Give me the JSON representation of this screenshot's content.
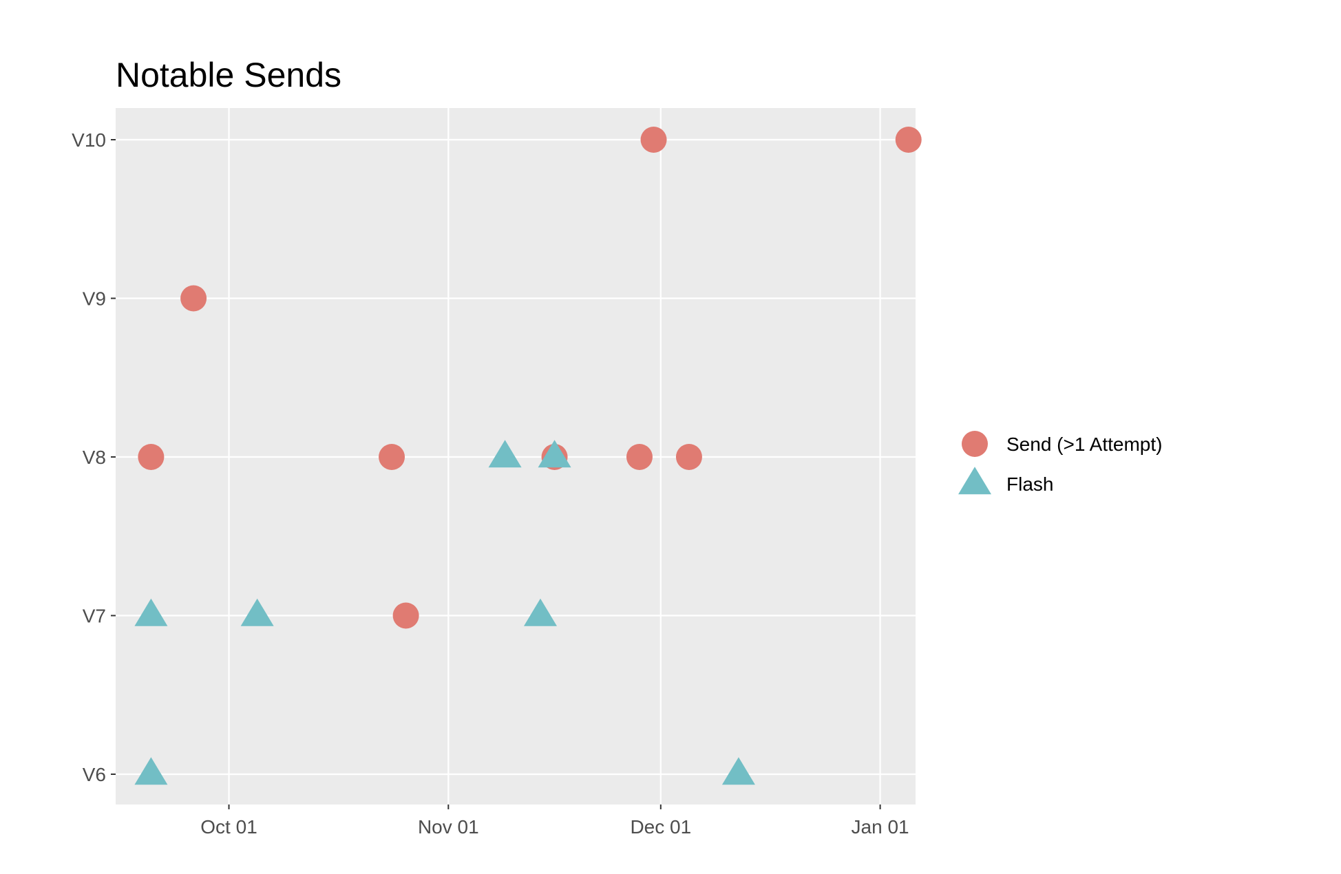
{
  "chart_data": {
    "type": "scatter",
    "title": "Notable Sends",
    "xlabel": "",
    "ylabel": "",
    "x_axis": {
      "type": "date",
      "range": [
        "2023-09-15",
        "2024-01-06"
      ],
      "ticks": [
        {
          "date": "2023-10-01",
          "label": "Oct 01"
        },
        {
          "date": "2023-11-01",
          "label": "Nov 01"
        },
        {
          "date": "2023-12-01",
          "label": "Dec 01"
        },
        {
          "date": "2024-01-01",
          "label": "Jan 01"
        }
      ]
    },
    "y_axis": {
      "type": "categorical",
      "categories": [
        "V6",
        "V7",
        "V8",
        "V9",
        "V10"
      ]
    },
    "grid": true,
    "background": "#EBEBEB",
    "legend": {
      "position": "right",
      "entries": [
        {
          "label": "Send (>1 Attempt)",
          "shape": "circle",
          "color": "#E07B72"
        },
        {
          "label": "Flash",
          "shape": "triangle",
          "color": "#72BEC5"
        }
      ]
    },
    "series": [
      {
        "name": "Send (>1 Attempt)",
        "shape": "circle",
        "color": "#E07B72",
        "points": [
          {
            "x": "2023-09-20",
            "y": "V8"
          },
          {
            "x": "2023-09-26",
            "y": "V9"
          },
          {
            "x": "2023-10-24",
            "y": "V8"
          },
          {
            "x": "2023-10-26",
            "y": "V7"
          },
          {
            "x": "2023-11-16",
            "y": "V8"
          },
          {
            "x": "2023-11-28",
            "y": "V8"
          },
          {
            "x": "2023-11-30",
            "y": "V10"
          },
          {
            "x": "2023-12-05",
            "y": "V8"
          },
          {
            "x": "2024-01-05",
            "y": "V10"
          }
        ]
      },
      {
        "name": "Flash",
        "shape": "triangle",
        "color": "#72BEC5",
        "points": [
          {
            "x": "2023-09-20",
            "y": "V7"
          },
          {
            "x": "2023-09-20",
            "y": "V6"
          },
          {
            "x": "2023-10-05",
            "y": "V7"
          },
          {
            "x": "2023-11-09",
            "y": "V8"
          },
          {
            "x": "2023-11-14",
            "y": "V7"
          },
          {
            "x": "2023-11-16",
            "y": "V8"
          },
          {
            "x": "2023-12-12",
            "y": "V6"
          }
        ]
      }
    ]
  }
}
